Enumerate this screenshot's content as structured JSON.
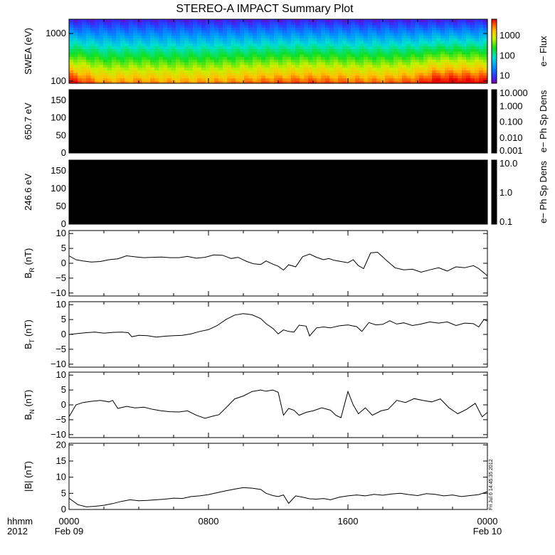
{
  "chart_data": {
    "title": "STEREO-A IMPACT Summary Plot",
    "type": "multi-panel time series",
    "footer": {
      "time_label": "hhmm",
      "year_label": "2012"
    },
    "x_axis": {
      "range": [
        "2012-02-09 00:00",
        "2012-02-10 00:00"
      ],
      "ticks": [
        {
          "time": "2012-02-09 00:00",
          "label": "0000",
          "sublabel": "Feb 09"
        },
        {
          "time": "2012-02-09 08:00",
          "label": "0800",
          "sublabel": ""
        },
        {
          "time": "2012-02-09 16:00",
          "label": "1600",
          "sublabel": ""
        },
        {
          "time": "2012-02-10 00:00",
          "label": "0000",
          "sublabel": "Feb 10"
        }
      ]
    },
    "timestamp_note": "Fri Jul  6 14:45:35 2012",
    "panels": [
      {
        "id": "swea",
        "type": "heatmap",
        "ylabel": "SWEA (eV)",
        "yscale": "log",
        "ylim": [
          90,
          2000
        ],
        "yticks": [
          {
            "value": 100,
            "label": "100"
          },
          {
            "value": 1000,
            "label": "1000"
          }
        ],
        "colorbar": {
          "label": "e− Flux",
          "scale": "log",
          "range": [
            4,
            6000
          ],
          "ticks": [
            {
              "value": 10,
              "label": "10"
            },
            {
              "value": 100,
              "label": "100"
            },
            {
              "value": 1000,
              "label": "1000"
            }
          ]
        },
        "intensity_profile": {
          "hours": [
            0,
            2,
            4,
            6,
            8,
            10,
            12,
            14,
            16,
            18,
            20,
            21,
            22,
            24
          ],
          "relative_flux": [
            0.95,
            0.6,
            0.65,
            0.6,
            0.62,
            0.68,
            0.75,
            0.78,
            0.72,
            0.7,
            0.8,
            1.0,
            1.0,
            0.95
          ]
        }
      },
      {
        "id": "pad650",
        "type": "heatmap",
        "fill": "#000000",
        "ylabel": "650.7 eV",
        "yscale": "linear",
        "ylim": [
          0,
          180
        ],
        "yticks": [
          {
            "value": 0,
            "label": "0"
          },
          {
            "value": 50,
            "label": "50"
          },
          {
            "value": 100,
            "label": "100"
          },
          {
            "value": 150,
            "label": "150"
          }
        ],
        "colorbar": {
          "label": "e− Ph Sp Dens",
          "scale": "log",
          "range": [
            0.001,
            10
          ],
          "fill": "#000000",
          "ticks": [
            {
              "value": 0.001,
              "label": "0.001"
            },
            {
              "value": 0.01,
              "label": "0.010"
            },
            {
              "value": 0.1,
              "label": "0.100"
            },
            {
              "value": 1,
              "label": "1.000"
            },
            {
              "value": 10,
              "label": "10.000"
            }
          ]
        }
      },
      {
        "id": "pad246",
        "type": "heatmap",
        "fill": "#000000",
        "ylabel": "246.6 eV",
        "yscale": "linear",
        "ylim": [
          0,
          180
        ],
        "yticks": [
          {
            "value": 0,
            "label": "0"
          },
          {
            "value": 50,
            "label": "50"
          },
          {
            "value": 100,
            "label": "100"
          },
          {
            "value": 150,
            "label": "150"
          }
        ],
        "colorbar": {
          "label": "e− Ph Sp Dens",
          "scale": "log",
          "range": [
            0.1,
            10
          ],
          "fill": "#000000",
          "ticks": [
            {
              "value": 0.1,
              "label": "0.1"
            },
            {
              "value": 1,
              "label": "1.0"
            },
            {
              "value": 10,
              "label": "10.0"
            }
          ]
        }
      },
      {
        "id": "br",
        "type": "line",
        "ylabel": "B",
        "ylabel_sub": "R",
        "ylabel_unit": " (nT)",
        "ylim": [
          -11,
          11
        ],
        "yticks": [
          {
            "value": -10,
            "label": "−10"
          },
          {
            "value": -5,
            "label": "−5"
          },
          {
            "value": 0,
            "label": "0"
          },
          {
            "value": 5,
            "label": "5"
          },
          {
            "value": 10,
            "label": "10"
          }
        ],
        "series": [
          {
            "x": [
              0,
              0.4,
              0.8,
              1.3,
              1.8,
              2.3,
              2.8,
              3.3,
              3.9,
              4.3,
              4.8,
              5.3,
              5.8,
              6.3,
              6.8,
              7.3,
              7.8,
              8.3,
              8.8,
              9.3,
              9.7,
              10.2,
              10.6,
              11,
              11.3,
              11.7,
              12,
              12.3,
              12.6,
              13,
              13.4,
              13.8,
              14.2,
              14.6,
              14.9,
              15.2,
              15.6,
              16,
              16.3,
              16.6,
              16.9,
              17.3,
              17.7,
              18.2,
              18.7,
              19.2,
              19.7,
              20.2,
              20.7,
              21.2,
              21.7,
              22.2,
              22.7,
              23.2,
              23.5,
              24
            ],
            "y": [
              2.5,
              1.2,
              0.8,
              0.4,
              0.6,
              1.2,
              1.5,
              2.5,
              2.1,
              1.9,
              2.0,
              2.1,
              1.9,
              1.9,
              2.3,
              1.7,
              2.0,
              2.8,
              2.7,
              1.6,
              2.0,
              0.6,
              -0.2,
              -0.4,
              0.8,
              -0.3,
              -1.0,
              -2.3,
              -0.5,
              -1.2,
              2.2,
              3.1,
              2.0,
              1.2,
              1.6,
              1.0,
              0.6,
              0.2,
              1.2,
              -0.8,
              -1.8,
              3.5,
              3.7,
              1.0,
              -1.5,
              -2.2,
              -2.0,
              -3.0,
              -2.2,
              -1.5,
              -2.6,
              -1.2,
              -1.5,
              -0.8,
              -1.8,
              -4.2
            ]
          }
        ]
      },
      {
        "id": "bt",
        "type": "line",
        "ylabel": "B",
        "ylabel_sub": "T",
        "ylabel_unit": " (nT)",
        "ylim": [
          -11,
          11
        ],
        "yticks": [
          {
            "value": -10,
            "label": "−10"
          },
          {
            "value": -5,
            "label": "−5"
          },
          {
            "value": 0,
            "label": "0"
          },
          {
            "value": 5,
            "label": "5"
          },
          {
            "value": 10,
            "label": "10"
          }
        ],
        "series": [
          {
            "x": [
              0,
              0.5,
              1,
              1.5,
              2,
              2.5,
              3,
              3.4,
              3.6,
              4,
              4.5,
              5,
              5.5,
              6,
              6.5,
              7,
              7.5,
              8,
              8.5,
              9,
              9.5,
              10,
              10.5,
              11,
              11.3,
              11.7,
              12,
              12.3,
              12.6,
              12.9,
              13.2,
              13.6,
              13.8,
              14.2,
              14.6,
              15,
              15.5,
              16,
              16.5,
              16.8,
              17.2,
              17.6,
              18,
              18.4,
              18.8,
              19.2,
              19.7,
              20.2,
              20.7,
              21.2,
              21.7,
              22.2,
              22.7,
              23.2,
              23.5,
              23.8,
              24
            ],
            "y": [
              0,
              0.3,
              0.6,
              0.8,
              0.4,
              0.7,
              0.8,
              0.6,
              -0.8,
              -0.3,
              -0.4,
              -0.9,
              -0.6,
              -0.4,
              -0.3,
              0.2,
              1.0,
              1.6,
              3.0,
              5.0,
              6.5,
              7.0,
              6.6,
              5.3,
              3.6,
              2.0,
              0.2,
              1.5,
              1.0,
              0.8,
              3.1,
              2.8,
              -0.5,
              2.2,
              2.5,
              2.2,
              2.9,
              3.2,
              2.6,
              1.0,
              4.0,
              3.2,
              3.4,
              4.6,
              3.5,
              3.9,
              3.0,
              3.5,
              4.2,
              3.8,
              4.2,
              3.0,
              3.8,
              3.6,
              2.5,
              5.0,
              4.5
            ]
          }
        ]
      },
      {
        "id": "bn",
        "type": "line",
        "ylabel": "B",
        "ylabel_sub": "N",
        "ylabel_unit": " (nT)",
        "ylim": [
          -11,
          11
        ],
        "yticks": [
          {
            "value": -10,
            "label": "−10"
          },
          {
            "value": -5,
            "label": "−5"
          },
          {
            "value": 0,
            "label": "0"
          },
          {
            "value": 5,
            "label": "5"
          },
          {
            "value": 10,
            "label": "10"
          }
        ],
        "series": [
          {
            "x": [
              0,
              0.4,
              0.8,
              1.3,
              1.8,
              2.3,
              2.5,
              2.8,
              3.3,
              3.8,
              4.3,
              4.8,
              5.3,
              5.8,
              6.3,
              6.8,
              7.3,
              7.8,
              8.3,
              8.6,
              9,
              9.5,
              10,
              10.5,
              11,
              11.3,
              11.7,
              12,
              12.3,
              12.6,
              12.9,
              13.2,
              13.6,
              14,
              14.5,
              15,
              15.3,
              15.6,
              16,
              16.3,
              16.6,
              17,
              17.4,
              17.9,
              18.3,
              18.8,
              19.3,
              19.8,
              20.3,
              20.8,
              21.3,
              21.8,
              22.3,
              22.8,
              23.3,
              23.7,
              24
            ],
            "y": [
              -4,
              0,
              0.8,
              1.2,
              1.5,
              1.0,
              1.5,
              -1.2,
              -0.5,
              -1.0,
              -0.8,
              -1.5,
              -2.0,
              -2.3,
              -2.4,
              -2.0,
              -3.5,
              -4.5,
              -3.7,
              -3.3,
              -1.0,
              2.0,
              3.0,
              4.5,
              5.0,
              4.6,
              5.0,
              4.2,
              -3.5,
              -1.2,
              -1.8,
              -3.5,
              -2.5,
              -2.0,
              -1.0,
              -1.8,
              -3.5,
              -4.3,
              4.5,
              0,
              -3.0,
              -1.0,
              -3.5,
              -2.0,
              -1.5,
              1.5,
              0.8,
              2.1,
              1.5,
              1.0,
              2.0,
              -1.0,
              -3.0,
              -1.5,
              0.5,
              -4.0,
              -2.5
            ]
          }
        ]
      },
      {
        "id": "bmag",
        "type": "line",
        "ylabel": "|B| (nT)",
        "ylim": [
          0,
          20.5
        ],
        "yticks": [
          {
            "value": 0,
            "label": "0"
          },
          {
            "value": 5,
            "label": "5"
          },
          {
            "value": 10,
            "label": "10"
          },
          {
            "value": 15,
            "label": "15"
          },
          {
            "value": 20,
            "label": "20"
          }
        ],
        "series": [
          {
            "x": [
              0,
              0.5,
              1,
              1.5,
              2,
              2.5,
              3,
              3.5,
              4,
              4.5,
              5,
              5.5,
              6,
              6.5,
              7,
              7.5,
              8,
              8.5,
              9,
              9.5,
              10,
              10.5,
              11,
              11.3,
              11.7,
              12,
              12.3,
              12.6,
              13,
              13.4,
              13.8,
              14.2,
              14.6,
              15,
              15.5,
              16,
              16.5,
              17,
              17.5,
              18,
              18.5,
              19,
              19.5,
              20,
              20.5,
              21,
              21.5,
              22,
              22.5,
              23,
              23.5,
              24
            ],
            "y": [
              3.5,
              1.5,
              0.8,
              1.0,
              1.3,
              1.8,
              2.5,
              3.0,
              2.7,
              2.8,
              3.0,
              3.2,
              3.5,
              3.4,
              4.0,
              4.2,
              4.6,
              5.2,
              5.8,
              6.3,
              6.8,
              6.6,
              6.2,
              5.0,
              4.3,
              4.0,
              4.5,
              1.9,
              4.2,
              3.8,
              3.3,
              3.2,
              3.4,
              3.0,
              3.8,
              4.2,
              4.5,
              4.2,
              4.7,
              4.4,
              4.8,
              5.0,
              4.6,
              4.3,
              4.9,
              4.7,
              4.2,
              4.5,
              4.0,
              4.3,
              4.6,
              5.5
            ]
          }
        ]
      }
    ]
  }
}
